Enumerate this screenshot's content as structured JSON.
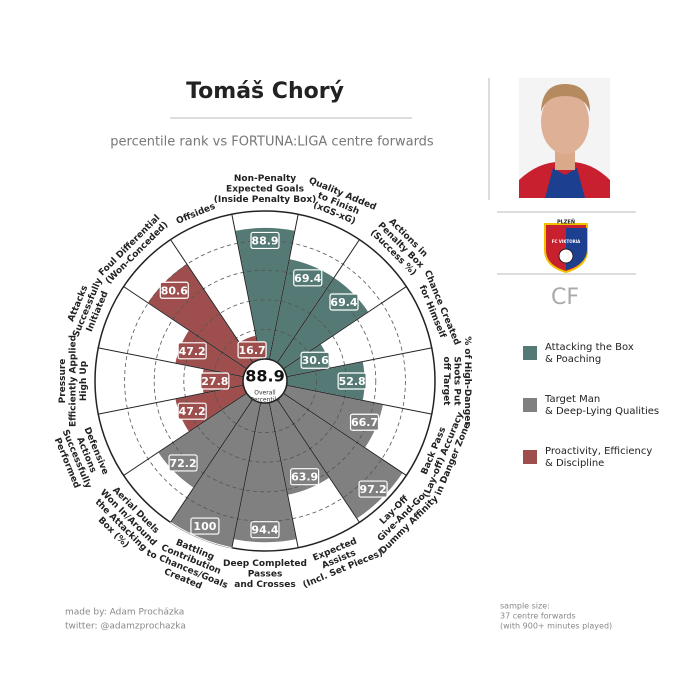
{
  "chart_data": {
    "type": "pizza",
    "title": "Tomáš Chorý",
    "subtitle": "percentile rank vs FORTUNA:LIGA centre forwards",
    "rlim": [
      0,
      100
    ],
    "rticks": [
      20,
      40,
      60,
      80
    ],
    "center_value": 88.9,
    "center_label": "Overall\nPercentile",
    "position": "CF",
    "badge": [
      "PLZEŇ",
      "FC VIKTORIA"
    ],
    "series": [
      {
        "name": "Attacking the Box\n& Poaching",
        "color": "#557a75",
        "categories": [
          "Non-Penalty\nExpected Goals\n(Inside Penalty Box)",
          "Quality Added\nto Finish\n(xGS-xG)",
          "Actions in\nPenalty Box\n(Success %)",
          "Chance Created\nfor Himself",
          "% of High-Danger\nShots Put\noff Target"
        ],
        "values": [
          88.9,
          69.4,
          69.4,
          30.6,
          52.8
        ]
      },
      {
        "name": "Target Man\n& Deep-Lying Qualities",
        "color": "#808080",
        "categories": [
          "Back Pass\n(Lay-off) Accuracy\nin Danger Zone",
          "Lay-Off\nGive-And-Go\nDummy Affinity",
          "Expected\nAssists\n(Incl. Set Pieces)",
          "Deep Completed\nPasses\nand Crosses",
          "Battling\nContribution\nto Chances/Goals\nCreated",
          "Aerial Duels\nWon In/Around\nthe Attacking\nBox (%)"
        ],
        "values": [
          66.7,
          97.2,
          63.9,
          94.4,
          100,
          72.2
        ]
      },
      {
        "name": "Proactivity, Efficiency\n& Discipline",
        "color": "#9e4e4d",
        "categories": [
          "Defensive\nActions\nSuccessfully\nPerformed",
          "Pressure\nEfficiently Applied\nHigh Up",
          "Attacks\nSuccessfully\nInitiated",
          "Foul Differential\n(Won-Conceded)",
          "Offsides"
        ],
        "values": [
          47.2,
          27.8,
          47.2,
          80.6,
          16.7
        ]
      }
    ],
    "credits": [
      "made by: Adam Procházka",
      "twitter: @adamzprochazka"
    ],
    "note": [
      "sample size:",
      "37 centre forwards",
      "(with 900+ minutes played)"
    ]
  }
}
